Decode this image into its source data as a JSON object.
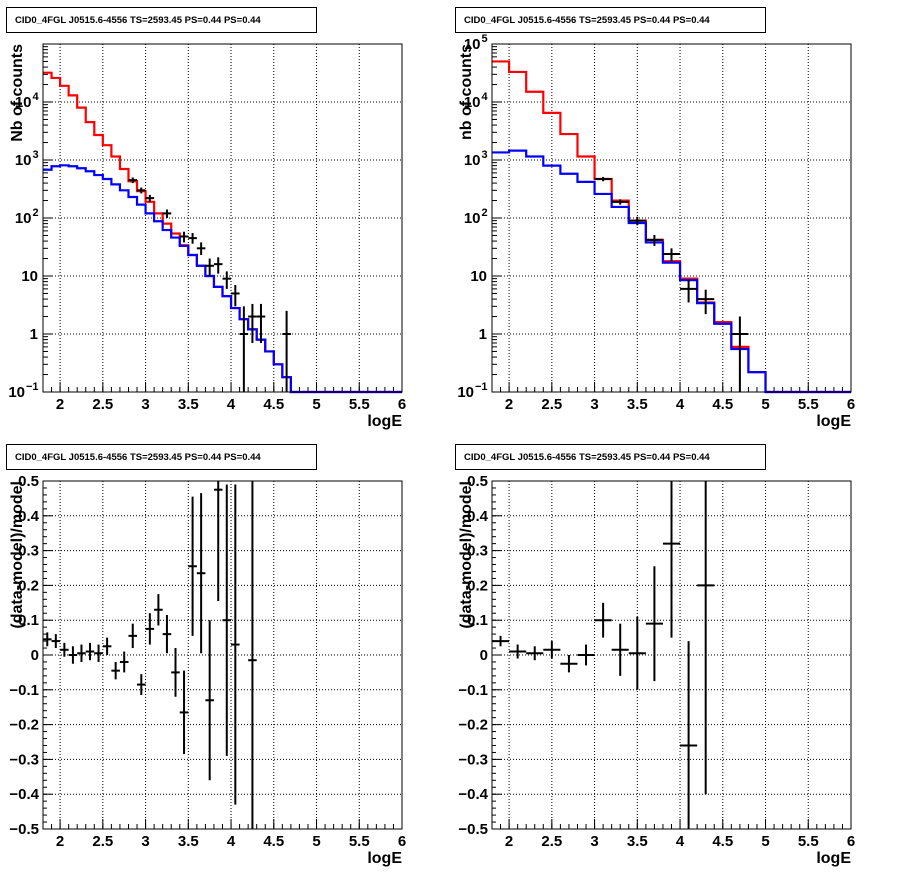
{
  "chart_data": [
    {
      "type": "step-histogram",
      "title": "CID0_4FGL J0515.6-4556 TS=2593.45 PS=0.44 PS=0.44",
      "xlabel": "logE",
      "ylabel": "Nb of counts",
      "xlim": [
        1.8,
        6
      ],
      "ylim": [
        0.1,
        100000
      ],
      "yscale": "log",
      "grid": true,
      "xticks": [
        "2",
        "2.5",
        "3",
        "3.5",
        "4",
        "4.5",
        "5",
        "5.5",
        "6"
      ],
      "yticks": [
        {
          "value": 0.1,
          "label": "10",
          "sup": "−1"
        },
        {
          "value": 1,
          "label": "1",
          "sup": ""
        },
        {
          "value": 10,
          "label": "10",
          "sup": ""
        },
        {
          "value": 100,
          "label": "10",
          "sup": "2"
        },
        {
          "value": 1000,
          "label": "10",
          "sup": "3"
        },
        {
          "value": 10000,
          "label": "10",
          "sup": "4"
        }
      ],
      "bin_edges": [
        1.8,
        1.9,
        2.0,
        2.1,
        2.2,
        2.3,
        2.4,
        2.5,
        2.6,
        2.7,
        2.8,
        2.9,
        3.0,
        3.1,
        3.2,
        3.3,
        3.4,
        3.5,
        3.6,
        3.7,
        3.8,
        3.9,
        4.0,
        4.1,
        4.2,
        4.3,
        4.4,
        4.5,
        4.6,
        4.7,
        4.8,
        4.9,
        5.0,
        5.1,
        5.2,
        5.3,
        5.4,
        5.5,
        5.6,
        5.7,
        5.8,
        5.9,
        6.0
      ],
      "series": [
        {
          "name": "",
          "color": "#ff0000",
          "values": [
            32000,
            26000,
            19000,
            13000,
            8000,
            4500,
            2700,
            1800,
            1150,
            700,
            430,
            290,
            190,
            120,
            80,
            54,
            34,
            23,
            15,
            10,
            6.5,
            4.5,
            2.8,
            1.8,
            1.2,
            0.8,
            0.5,
            0.3,
            0.18,
            0.1,
            0.1,
            0.1,
            0.1,
            0.1,
            0.1,
            0.1,
            0.1,
            0.1,
            0.1,
            0.1,
            0.1,
            0.1
          ]
        },
        {
          "name": "",
          "color": "#0000ff",
          "values": [
            680,
            780,
            810,
            780,
            720,
            640,
            550,
            470,
            380,
            300,
            230,
            170,
            120,
            88,
            62,
            46,
            33,
            23,
            15,
            10,
            6.5,
            4.5,
            2.8,
            1.8,
            1.2,
            0.8,
            0.5,
            0.3,
            0.18,
            0.1,
            0.1,
            0.1,
            0.1,
            0.1,
            0.1,
            0.1,
            0.1,
            0.1,
            0.1,
            0.1,
            0.1,
            0.1
          ]
        }
      ],
      "data_points": [
        {
          "x": 2.85,
          "y": 450,
          "ylo": 400,
          "yhi": 500
        },
        {
          "x": 2.95,
          "y": 300,
          "ylo": 265,
          "yhi": 335
        },
        {
          "x": 3.05,
          "y": 220,
          "ylo": 190,
          "yhi": 250
        },
        {
          "x": 3.25,
          "y": 120,
          "ylo": 100,
          "yhi": 140
        },
        {
          "x": 3.45,
          "y": 48,
          "ylo": 38,
          "yhi": 58
        },
        {
          "x": 3.55,
          "y": 45,
          "ylo": 36,
          "yhi": 55
        },
        {
          "x": 3.65,
          "y": 30,
          "ylo": 23,
          "yhi": 38
        },
        {
          "x": 3.75,
          "y": 15,
          "ylo": 10,
          "yhi": 20
        },
        {
          "x": 3.85,
          "y": 16,
          "ylo": 11,
          "yhi": 21
        },
        {
          "x": 3.95,
          "y": 9,
          "ylo": 6,
          "yhi": 12
        },
        {
          "x": 4.05,
          "y": 5,
          "ylo": 3,
          "yhi": 7
        },
        {
          "x": 4.15,
          "y": 1,
          "ylo": 0.1,
          "yhi": 3
        },
        {
          "x": 4.25,
          "y": 2,
          "ylo": 0.7,
          "yhi": 3.3
        },
        {
          "x": 4.35,
          "y": 2,
          "ylo": 0.7,
          "yhi": 3.3
        },
        {
          "x": 4.65,
          "y": 1,
          "ylo": 0.1,
          "yhi": 2.5
        }
      ]
    },
    {
      "type": "step-histogram",
      "title": "CID0_4FGL J0515.6-4556 TS=2593.45 PS=0.44 PS=0.44",
      "xlabel": "logE",
      "ylabel": "nb of counts",
      "xlim": [
        1.8,
        6
      ],
      "ylim": [
        0.1,
        100000
      ],
      "yscale": "log",
      "grid": true,
      "xticks": [
        "2",
        "2.5",
        "3",
        "3.5",
        "4",
        "4.5",
        "5",
        "5.5",
        "6"
      ],
      "yticks": [
        {
          "value": 0.1,
          "label": "10",
          "sup": "−1"
        },
        {
          "value": 1,
          "label": "1",
          "sup": ""
        },
        {
          "value": 10,
          "label": "10",
          "sup": ""
        },
        {
          "value": 100,
          "label": "10",
          "sup": "2"
        },
        {
          "value": 1000,
          "label": "10",
          "sup": "3"
        },
        {
          "value": 10000,
          "label": "10",
          "sup": "4"
        },
        {
          "value": 100000,
          "label": "10",
          "sup": "5"
        }
      ],
      "bin_edges": [
        1.8,
        2.0,
        2.2,
        2.4,
        2.6,
        2.8,
        3.0,
        3.2,
        3.4,
        3.6,
        3.8,
        4.0,
        4.2,
        4.4,
        4.6,
        4.8,
        5.0,
        5.2,
        5.4,
        5.6,
        5.8,
        6.0
      ],
      "series": [
        {
          "name": "",
          "color": "#ff0000",
          "values": [
            50000,
            33000,
            15000,
            6500,
            2800,
            1150,
            470,
            200,
            90,
            42,
            18,
            9,
            3.5,
            1.6,
            0.6,
            0.22,
            0.1,
            0.1,
            0.1,
            0.1,
            0.1
          ]
        },
        {
          "name": "",
          "color": "#0000ff",
          "values": [
            1350,
            1450,
            1150,
            800,
            580,
            420,
            260,
            155,
            82,
            38,
            17,
            8.5,
            3.4,
            1.5,
            0.55,
            0.22,
            0.1,
            0.1,
            0.1,
            0.1,
            0.1
          ]
        }
      ],
      "data_points": [
        {
          "x": 3.1,
          "y": 470,
          "ylo": 430,
          "yhi": 510
        },
        {
          "x": 3.3,
          "y": 190,
          "ylo": 170,
          "yhi": 210
        },
        {
          "x": 3.5,
          "y": 90,
          "ylo": 75,
          "yhi": 105
        },
        {
          "x": 3.7,
          "y": 42,
          "ylo": 33,
          "yhi": 51
        },
        {
          "x": 3.9,
          "y": 24,
          "ylo": 18,
          "yhi": 30
        },
        {
          "x": 4.1,
          "y": 6,
          "ylo": 3.5,
          "yhi": 8.5
        },
        {
          "x": 4.3,
          "y": 4,
          "ylo": 2.2,
          "yhi": 5.8
        },
        {
          "x": 4.7,
          "y": 1,
          "ylo": 0.1,
          "yhi": 2.0
        }
      ]
    },
    {
      "type": "scatter-errorbars",
      "title": "CID0_4FGL J0515.6-4556 TS=2593.45 PS=0.44 PS=0.44",
      "xlabel": "logE",
      "ylabel": "(data-model)/model",
      "xlim": [
        1.8,
        6
      ],
      "ylim": [
        -0.5,
        0.5
      ],
      "grid": true,
      "xticks": [
        "2",
        "2.5",
        "3",
        "3.5",
        "4",
        "4.5",
        "5",
        "5.5",
        "6"
      ],
      "yticks": [
        "−0.5",
        "−0.4",
        "−0.3",
        "−0.2",
        "−0.1",
        "0",
        "0.1",
        "0.2",
        "0.3",
        "0.4",
        "0.5"
      ],
      "bin_width": 0.1,
      "points": [
        {
          "x": 1.85,
          "y": 0.045,
          "err": 0.02
        },
        {
          "x": 1.95,
          "y": 0.04,
          "err": 0.02
        },
        {
          "x": 2.05,
          "y": 0.015,
          "err": 0.02
        },
        {
          "x": 2.15,
          "y": 0.0,
          "err": 0.025
        },
        {
          "x": 2.25,
          "y": 0.005,
          "err": 0.025
        },
        {
          "x": 2.35,
          "y": 0.01,
          "err": 0.025
        },
        {
          "x": 2.45,
          "y": 0.005,
          "err": 0.025
        },
        {
          "x": 2.55,
          "y": 0.025,
          "err": 0.025
        },
        {
          "x": 2.65,
          "y": -0.045,
          "err": 0.025
        },
        {
          "x": 2.75,
          "y": -0.02,
          "err": 0.03
        },
        {
          "x": 2.85,
          "y": 0.055,
          "err": 0.035
        },
        {
          "x": 2.95,
          "y": -0.085,
          "err": 0.03
        },
        {
          "x": 3.05,
          "y": 0.075,
          "err": 0.045
        },
        {
          "x": 3.15,
          "y": 0.13,
          "err": 0.045
        },
        {
          "x": 3.25,
          "y": 0.06,
          "err": 0.055
        },
        {
          "x": 3.35,
          "y": -0.05,
          "err": 0.07
        },
        {
          "x": 3.45,
          "y": -0.165,
          "err": 0.12
        },
        {
          "x": 3.55,
          "y": 0.255,
          "err": 0.2
        },
        {
          "x": 3.65,
          "y": 0.235,
          "err": 0.23
        },
        {
          "x": 3.75,
          "y": -0.13,
          "err": 0.23
        },
        {
          "x": 3.85,
          "y": 0.475,
          "err": 0.32
        },
        {
          "x": 3.95,
          "y": 0.1,
          "err": 0.39
        },
        {
          "x": 4.05,
          "y": 0.03,
          "err": 0.46
        },
        {
          "x": 4.25,
          "y": -0.015,
          "err": 0.6
        }
      ]
    },
    {
      "type": "scatter-errorbars",
      "title": "CID0_4FGL J0515.6-4556 TS=2593.45 PS=0.44 PS=0.44",
      "xlabel": "logE",
      "ylabel": "(data-model)/model",
      "xlim": [
        1.8,
        6
      ],
      "ylim": [
        -0.5,
        0.5
      ],
      "grid": true,
      "xticks": [
        "2",
        "2.5",
        "3",
        "3.5",
        "4",
        "4.5",
        "5",
        "5.5",
        "6"
      ],
      "yticks": [
        "−0.5",
        "−0.4",
        "−0.3",
        "−0.2",
        "−0.1",
        "0",
        "0.1",
        "0.2",
        "0.3",
        "0.4",
        "0.5"
      ],
      "bin_width": 0.2,
      "points": [
        {
          "x": 1.9,
          "y": 0.04,
          "err": 0.015
        },
        {
          "x": 2.1,
          "y": 0.01,
          "err": 0.02
        },
        {
          "x": 2.3,
          "y": 0.005,
          "err": 0.02
        },
        {
          "x": 2.5,
          "y": 0.015,
          "err": 0.025
        },
        {
          "x": 2.7,
          "y": -0.025,
          "err": 0.025
        },
        {
          "x": 2.9,
          "y": 0.0,
          "err": 0.03
        },
        {
          "x": 3.1,
          "y": 0.1,
          "err": 0.05
        },
        {
          "x": 3.3,
          "y": 0.015,
          "err": 0.075
        },
        {
          "x": 3.5,
          "y": 0.005,
          "err": 0.105
        },
        {
          "x": 3.7,
          "y": 0.09,
          "err": 0.165
        },
        {
          "x": 3.9,
          "y": 0.32,
          "err": 0.27
        },
        {
          "x": 4.1,
          "y": -0.26,
          "err": 0.3
        },
        {
          "x": 4.3,
          "y": 0.2,
          "err": 0.6
        }
      ]
    }
  ]
}
